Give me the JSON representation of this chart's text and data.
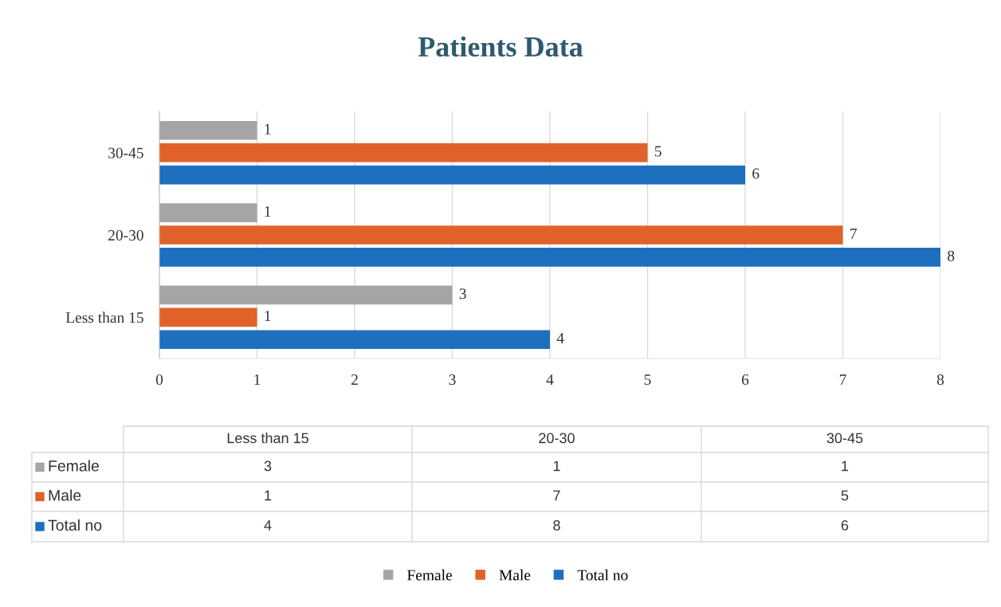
{
  "chart_data": [
    {
      "type": "bar",
      "orientation": "horizontal",
      "title": "Patients Data",
      "categories": [
        "30-45",
        "20-30",
        "Less than 15"
      ],
      "series": [
        {
          "name": "Female",
          "color": "#a5a5a5",
          "values": [
            1,
            1,
            3
          ]
        },
        {
          "name": "Male",
          "color": "#e0622a",
          "values": [
            5,
            7,
            1
          ]
        },
        {
          "name": "Total no",
          "color": "#1f6fbf",
          "values": [
            6,
            8,
            4
          ]
        }
      ],
      "xlim": [
        0,
        8
      ],
      "xticks": [
        0,
        1,
        2,
        3,
        4,
        5,
        6,
        7,
        8
      ],
      "grid": "x",
      "legend": "bottom",
      "data_labels": true
    },
    {
      "type": "other",
      "categories": [
        "Less than 15",
        "20-30",
        "30-45"
      ],
      "series": [
        {
          "name": "Female",
          "color": "#a5a5a5",
          "values": [
            3,
            1,
            1
          ]
        },
        {
          "name": "Male",
          "color": "#e0622a",
          "values": [
            1,
            7,
            5
          ]
        },
        {
          "name": "Total no",
          "color": "#1f6fbf",
          "values": [
            4,
            8,
            6
          ]
        }
      ],
      "data_labels": true
    }
  ]
}
